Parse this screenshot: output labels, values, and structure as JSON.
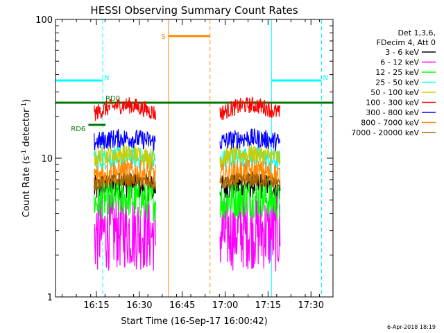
{
  "chart_data": {
    "type": "line",
    "title": "HESSI Observing Summary Count Rates",
    "xlabel": "Start Time (16-Sep-17 16:00:42)",
    "ylabel_main": "Count Rate (s",
    "ylabel_sup1": "-1",
    "ylabel_mid": " detector",
    "ylabel_sup2": "-1",
    "ylabel_end": ")",
    "yscale": "log",
    "ylim": [
      1,
      100
    ],
    "xlim_minutes": [
      0,
      97
    ],
    "xticks": [
      {
        "label": "16:15",
        "minute": 14.3
      },
      {
        "label": "16:30",
        "minute": 29.3
      },
      {
        "label": "16:45",
        "minute": 44.3
      },
      {
        "label": "17:00",
        "minute": 59.3
      },
      {
        "label": "17:15",
        "minute": 74.3
      },
      {
        "label": "17:30",
        "minute": 89.3
      }
    ],
    "yticks": [
      {
        "label": "1",
        "value": 1
      },
      {
        "label": "10",
        "value": 10
      },
      {
        "label": "100",
        "value": 100
      }
    ],
    "legend_header": [
      "Det 1,3,6,",
      "FDecim 4, Att 0"
    ],
    "series": [
      {
        "name": "3 - 6 keV",
        "color": "#000000",
        "level": 6.0,
        "spread": 0.1
      },
      {
        "name": "6 - 12 keV",
        "color": "#ff00ff",
        "level": 2.8,
        "spread": 0.28
      },
      {
        "name": "12 - 25 keV",
        "color": "#00ff00",
        "level": 4.8,
        "spread": 0.14
      },
      {
        "name": "25 - 50 keV",
        "color": "#00ffff",
        "level": 9.5,
        "spread": 0.08
      },
      {
        "name": "50 - 100 keV",
        "color": "#cccc00",
        "level": 10.0,
        "spread": 0.07
      },
      {
        "name": "100 - 300 keV",
        "color": "#ff0000",
        "level": 21.0,
        "spread": 0.06
      },
      {
        "name": "300 - 800 keV",
        "color": "#0000ff",
        "level": 13.0,
        "spread": 0.07
      },
      {
        "name": "800 - 7000 keV",
        "color": "#ff8800",
        "level": 7.5,
        "spread": 0.09
      },
      {
        "name": "7000 - 20000 keV",
        "color": "#aa6600",
        "level": 6.5,
        "spread": 0.05
      }
    ],
    "segments_minutes": [
      [
        13.5,
        35.0
      ],
      [
        57.5,
        78.5
      ]
    ],
    "flags": [
      {
        "label": "N",
        "color": "#00ffff",
        "y": 78,
        "start": 0,
        "end": 16.5,
        "dashed_line": 16.5,
        "solid_line": 0
      },
      {
        "label": "N",
        "color": "#00ffff",
        "y": 78,
        "start": 75.5,
        "end": 93,
        "dashed_line": 93,
        "solid_line": 75.5
      },
      {
        "label": "S",
        "color": "#ff8800",
        "y": 94,
        "start": 39.5,
        "end": 54,
        "dashed_line": 54,
        "solid_line": 39.5
      },
      {
        "label": "RD6",
        "color": "#007700",
        "y": 62,
        "start": 11.5,
        "end": 17.5
      },
      {
        "label": "RD0",
        "color": "#007700",
        "y": 70,
        "start": 0,
        "end": 97
      }
    ],
    "timestamp": "6-Apr-2018 18:19"
  }
}
